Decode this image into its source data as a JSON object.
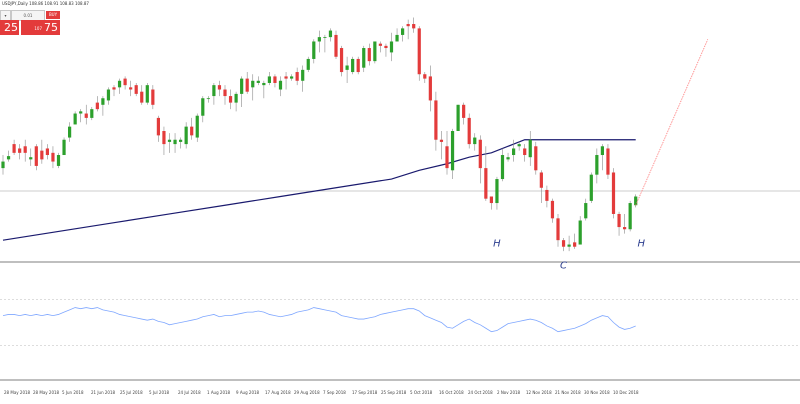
{
  "panel": {
    "symbol": "USDJPY,Daily 108.86 108.91 108.83 108.87",
    "qty_left": "",
    "qty_value": "0.01",
    "sell_price": "25",
    "buy_price": "75",
    "buy_small": "107",
    "buy_tag": "BUY"
  },
  "chart_data": [
    {
      "type": "candlestick",
      "title": "",
      "candles": [
        [
          0,
          104.3,
          104.0,
          104.9,
          104.6
        ],
        [
          1,
          104.7,
          104.6,
          105.1,
          104.85
        ],
        [
          2,
          105.4,
          104.9,
          105.6,
          105.0
        ],
        [
          3,
          105.2,
          104.7,
          105.4,
          105.0
        ],
        [
          4,
          105.3,
          104.6,
          105.6,
          105.0
        ],
        [
          5,
          104.7,
          104.4,
          105.2,
          104.8
        ],
        [
          6,
          105.3,
          104.2,
          105.4,
          104.4
        ],
        [
          7,
          105.1,
          104.5,
          105.6,
          104.7
        ],
        [
          8,
          105.2,
          104.7,
          105.4,
          104.9
        ],
        [
          9,
          105.0,
          104.3,
          105.3,
          104.6
        ],
        [
          10,
          104.4,
          104.3,
          105.0,
          104.9
        ],
        [
          11,
          104.9,
          104.9,
          105.7,
          105.6
        ],
        [
          12,
          105.7,
          105.5,
          106.4,
          106.2
        ],
        [
          13,
          106.3,
          106.3,
          106.9,
          106.8
        ],
        [
          14,
          106.8,
          106.4,
          107.0,
          106.9
        ],
        [
          15,
          106.8,
          106.3,
          107.2,
          106.6
        ],
        [
          16,
          106.6,
          106.5,
          107.1,
          107.0
        ],
        [
          17,
          107.3,
          106.9,
          107.6,
          107.0
        ],
        [
          18,
          107.2,
          106.7,
          107.6,
          107.5
        ],
        [
          19,
          107.4,
          107.2,
          108.0,
          107.9
        ],
        [
          20,
          108.0,
          107.6,
          108.1,
          107.9
        ],
        [
          21,
          108.0,
          107.7,
          108.4,
          108.3
        ],
        [
          22,
          108.4,
          107.9,
          108.5,
          108.1
        ],
        [
          23,
          108.0,
          107.6,
          108.3,
          107.9
        ],
        [
          24,
          108.1,
          107.6,
          108.2,
          107.7
        ],
        [
          25,
          107.8,
          107.2,
          108.1,
          107.3
        ],
        [
          26,
          107.3,
          107.2,
          108.2,
          108.1
        ],
        [
          27,
          107.9,
          107.0,
          108.1,
          107.2
        ],
        [
          28,
          106.6,
          105.5,
          106.7,
          105.8
        ],
        [
          29,
          106.0,
          104.9,
          106.2,
          105.4
        ],
        [
          30,
          105.5,
          105.0,
          105.9,
          105.6
        ],
        [
          31,
          105.4,
          105.0,
          105.9,
          105.6
        ],
        [
          32,
          105.5,
          105.2,
          105.7,
          105.6
        ],
        [
          33,
          105.4,
          105.2,
          106.4,
          106.2
        ],
        [
          34,
          106.2,
          105.6,
          106.6,
          105.8
        ],
        [
          35,
          105.7,
          105.5,
          106.8,
          106.7
        ],
        [
          36,
          106.7,
          106.4,
          107.6,
          107.5
        ],
        [
          37,
          107.5,
          107.3,
          107.6,
          107.5
        ],
        [
          38,
          107.6,
          107.2,
          108.2,
          108.1
        ],
        [
          39,
          108.1,
          107.6,
          108.3,
          107.9
        ],
        [
          40,
          107.9,
          107.2,
          108.1,
          107.6
        ],
        [
          41,
          107.6,
          107.0,
          107.9,
          107.3
        ],
        [
          42,
          107.3,
          106.9,
          107.8,
          107.7
        ],
        [
          43,
          107.7,
          107.1,
          108.5,
          108.4
        ],
        [
          44,
          108.4,
          107.7,
          108.7,
          107.8
        ],
        [
          45,
          108.0,
          107.4,
          108.6,
          108.3
        ],
        [
          46,
          108.2,
          108.1,
          108.5,
          108.3
        ],
        [
          47,
          108.1,
          107.5,
          108.3,
          108.2
        ],
        [
          48,
          108.2,
          108.1,
          108.7,
          108.5
        ],
        [
          49,
          108.5,
          108.0,
          108.6,
          108.2
        ],
        [
          50,
          107.9,
          107.6,
          108.5,
          108.3
        ],
        [
          51,
          108.5,
          107.9,
          108.7,
          108.4
        ],
        [
          52,
          108.4,
          108.3,
          108.6,
          108.5
        ],
        [
          53,
          108.7,
          108.1,
          108.9,
          108.3
        ],
        [
          54,
          108.3,
          107.8,
          109.0,
          108.8
        ],
        [
          55,
          108.8,
          108.7,
          109.4,
          109.3
        ],
        [
          56,
          109.3,
          109.1,
          110.2,
          110.1
        ],
        [
          57,
          110.1,
          109.6,
          110.6,
          110.3
        ],
        [
          58,
          110.3,
          109.6,
          110.4,
          110.3
        ],
        [
          59,
          110.3,
          110.1,
          110.7,
          110.6
        ],
        [
          60,
          110.4,
          109.3,
          110.6,
          109.4
        ],
        [
          61,
          109.8,
          108.5,
          109.9,
          108.7
        ],
        [
          62,
          108.8,
          108.2,
          109.4,
          109.0
        ],
        [
          63,
          108.7,
          108.6,
          109.4,
          109.3
        ],
        [
          64,
          109.3,
          108.6,
          109.4,
          108.7
        ],
        [
          65,
          108.9,
          108.7,
          109.9,
          109.8
        ],
        [
          66,
          109.8,
          109.0,
          110.0,
          109.2
        ],
        [
          67,
          109.2,
          109.1,
          110.1,
          110.1
        ],
        [
          68,
          110.0,
          109.6,
          110.1,
          109.9
        ],
        [
          69,
          109.9,
          109.4,
          110.0,
          109.8
        ],
        [
          70,
          109.6,
          109.2,
          110.5,
          110.1
        ],
        [
          71,
          110.1,
          110.1,
          110.7,
          110.4
        ],
        [
          72,
          110.4,
          110.1,
          110.8,
          110.7
        ],
        [
          73,
          110.9,
          110.2,
          111.1,
          110.8
        ],
        [
          74,
          110.9,
          110.5,
          111.2,
          110.7
        ],
        [
          75,
          110.7,
          108.3,
          110.8,
          108.6
        ],
        [
          76,
          108.6,
          108.2,
          108.7,
          108.4
        ],
        [
          77,
          108.5,
          106.9,
          109.0,
          107.4
        ],
        [
          78,
          107.4,
          105.1,
          107.8,
          105.6
        ],
        [
          79,
          105.6,
          104.7,
          106.0,
          105.5
        ],
        [
          80,
          105.3,
          104.0,
          106.0,
          104.3
        ],
        [
          81,
          104.2,
          103.8,
          106.1,
          106.0
        ],
        [
          82,
          106.0,
          106.0,
          107.2,
          107.2
        ],
        [
          83,
          107.2,
          106.3,
          107.3,
          106.6
        ],
        [
          84,
          106.6,
          105.2,
          106.8,
          105.4
        ],
        [
          85,
          105.4,
          105.1,
          105.9,
          105.7
        ],
        [
          86,
          105.6,
          103.6,
          105.8,
          104.3
        ],
        [
          87,
          104.3,
          102.8,
          105.3,
          102.9
        ],
        [
          88,
          103.0,
          102.4,
          103.0,
          102.7
        ],
        [
          89,
          102.7,
          102.4,
          103.9,
          103.8
        ],
        [
          90,
          103.8,
          103.7,
          105.2,
          104.9
        ],
        [
          91,
          104.7,
          104.6,
          105.0,
          104.8
        ],
        [
          92,
          104.9,
          104.6,
          105.6,
          105.2
        ],
        [
          93,
          105.3,
          105.1,
          105.5,
          105.4
        ],
        [
          94,
          105.2,
          104.6,
          105.4,
          104.9
        ],
        [
          95,
          104.8,
          104.4,
          106.0,
          105.6
        ],
        [
          96,
          105.3,
          104.0,
          105.5,
          104.2
        ],
        [
          97,
          104.1,
          102.7,
          104.2,
          103.4
        ],
        [
          98,
          103.3,
          102.5,
          103.5,
          102.8
        ],
        [
          99,
          102.8,
          101.8,
          102.9,
          102.0
        ],
        [
          100,
          102.0,
          100.7,
          102.2,
          101.0
        ],
        [
          101,
          101.0,
          100.5,
          101.1,
          100.7
        ],
        [
          102,
          100.7,
          100.5,
          101.2,
          100.8
        ],
        [
          103,
          100.9,
          100.6,
          101.3,
          100.7
        ],
        [
          104,
          100.8,
          100.8,
          102.1,
          101.9
        ],
        [
          105,
          102.0,
          101.9,
          102.9,
          102.7
        ],
        [
          106,
          102.8,
          102.7,
          104.1,
          104.0
        ],
        [
          107,
          104.0,
          103.6,
          105.2,
          104.9
        ],
        [
          108,
          104.9,
          104.2,
          105.4,
          105.3
        ],
        [
          109,
          105.2,
          103.8,
          105.4,
          104.0
        ],
        [
          110,
          104.1,
          102.0,
          104.3,
          102.2
        ],
        [
          111,
          102.2,
          101.2,
          102.3,
          101.6
        ],
        [
          112,
          101.6,
          101.3,
          102.2,
          101.5
        ],
        [
          113,
          101.5,
          101.4,
          102.8,
          102.7
        ],
        [
          114,
          102.6,
          102.5,
          103.1,
          103.0
        ]
      ],
      "ma_line": [
        [
          0,
          101.0
        ],
        [
          10,
          101.4
        ],
        [
          20,
          101.8
        ],
        [
          30,
          102.2
        ],
        [
          40,
          102.6
        ],
        [
          50,
          103.0
        ],
        [
          60,
          103.4
        ],
        [
          70,
          103.8
        ],
        [
          75,
          104.2
        ],
        [
          80,
          104.5
        ],
        [
          84,
          104.8
        ],
        [
          88,
          105.0
        ],
        [
          94,
          105.6
        ],
        [
          104,
          105.6
        ],
        [
          114,
          105.6
        ]
      ],
      "ylim": [
        100,
        112
      ],
      "x_tick_labels": [
        "28 May 2018",
        "28 May 2018",
        "5 Jun 2018",
        "21 Jun 2018",
        "25 Jul 2018",
        "5 Jul 2018",
        "24 Jul 2018",
        "1 Aug 2018",
        "9 Aug 2018",
        "17 Aug 2018",
        "29 Aug 2018",
        "7 Sep 2018",
        "17 Sep 2018",
        "25 Sep 2018",
        "5 Oct 2018",
        "16 Oct 2018",
        "24 Oct 2018",
        "2 Nov 2018",
        "12 Nov 2018",
        "21 Nov 2018",
        "30 Nov 2018",
        "10 Dec 2018"
      ],
      "annotations": [
        "H",
        "C",
        "H"
      ],
      "grid": false
    },
    {
      "type": "line",
      "title": "",
      "series": [
        {
          "values": [
            56,
            57,
            57,
            56,
            57,
            56,
            57,
            56,
            57,
            56,
            57,
            59,
            61,
            63,
            62,
            63,
            62,
            63,
            61,
            60,
            59,
            57,
            56,
            55,
            54,
            53,
            52,
            53,
            51,
            50,
            48,
            49,
            50,
            51,
            52,
            53,
            55,
            56,
            57,
            55,
            56,
            56,
            57,
            58,
            59,
            59,
            60,
            59,
            57,
            56,
            55,
            56,
            57,
            59,
            60,
            61,
            63,
            62,
            61,
            60,
            59,
            56,
            55,
            54,
            53,
            53,
            54,
            55,
            57,
            58,
            59,
            60,
            61,
            62,
            62,
            60,
            56,
            54,
            52,
            50,
            46,
            45,
            48,
            51,
            53,
            50,
            48,
            45,
            42,
            43,
            46,
            49,
            50,
            51,
            52,
            53,
            52,
            50,
            47,
            45,
            42,
            43,
            44,
            45,
            47,
            49,
            52,
            54,
            56,
            55,
            50,
            46,
            44,
            45,
            47
          ]
        }
      ],
      "ylim": [
        0,
        100
      ],
      "levels": [
        70,
        30
      ]
    }
  ]
}
